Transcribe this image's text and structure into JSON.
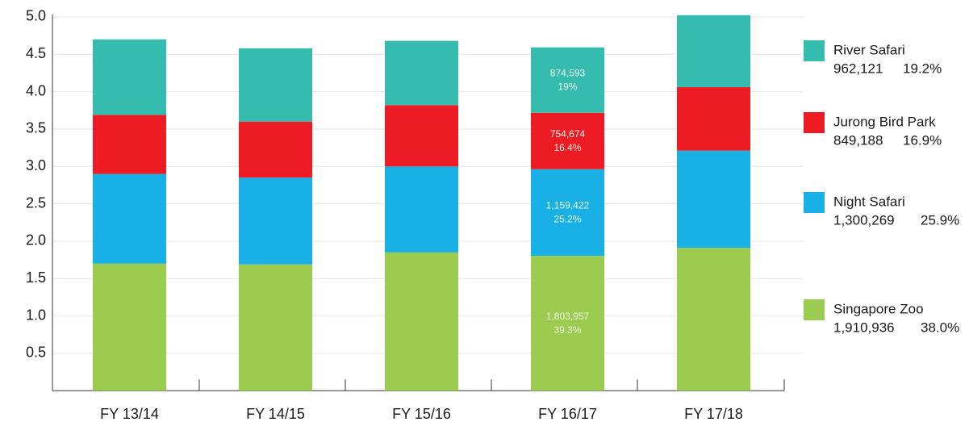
{
  "chart_data": {
    "type": "stacked_bar",
    "categories": [
      "FY 13/14",
      "FY 14/15",
      "FY 15/16",
      "FY 16/17",
      "FY 17/18"
    ],
    "series": [
      {
        "name": "Singapore Zoo",
        "color": "#9bcb4f",
        "values": [
          1.7,
          1.69,
          1.85,
          1.803957,
          1.910936
        ],
        "value_labels": [
          null,
          null,
          null,
          "1,803,957",
          null
        ],
        "share_labels": [
          null,
          null,
          null,
          "39.3%",
          null
        ],
        "legend_value": "1,910,936",
        "legend_share": "38.0%"
      },
      {
        "name": "Night Safari",
        "color": "#19b0e6",
        "values": [
          1.2,
          1.16,
          1.15,
          1.159422,
          1.300269
        ],
        "value_labels": [
          null,
          null,
          null,
          "1,159,422",
          null
        ],
        "share_labels": [
          null,
          null,
          null,
          "25.2%",
          null
        ],
        "legend_value": "1,300,269",
        "legend_share": "25.9%"
      },
      {
        "name": "Jurong Bird Park",
        "color": "#ed1c24",
        "values": [
          0.79,
          0.75,
          0.82,
          0.754674,
          0.849188
        ],
        "value_labels": [
          null,
          null,
          null,
          "754,674",
          null
        ],
        "share_labels": [
          null,
          null,
          null,
          "16.4%",
          null
        ],
        "legend_value": "849,188",
        "legend_share": "16.9%"
      },
      {
        "name": "River Safari",
        "color": "#35bcaf",
        "values": [
          1.01,
          0.98,
          0.86,
          0.874593,
          0.962121
        ],
        "value_labels": [
          null,
          null,
          null,
          "874,593",
          null
        ],
        "share_labels": [
          null,
          null,
          null,
          "19%",
          null
        ],
        "legend_value": "962,121",
        "legend_share": "19.2%"
      }
    ],
    "ylim": [
      0,
      5.1
    ],
    "yticks": [
      0.5,
      {
        "value": 1,
        "label": "1.0"
      },
      1.5,
      {
        "value": 2,
        "label": "2.0"
      },
      2.5,
      {
        "value": 3,
        "label": "3.0"
      },
      3.5,
      {
        "value": 4,
        "label": "4.0"
      },
      4.5,
      {
        "value": 5,
        "label": "5.0"
      }
    ],
    "grid": true,
    "legend": "right"
  }
}
